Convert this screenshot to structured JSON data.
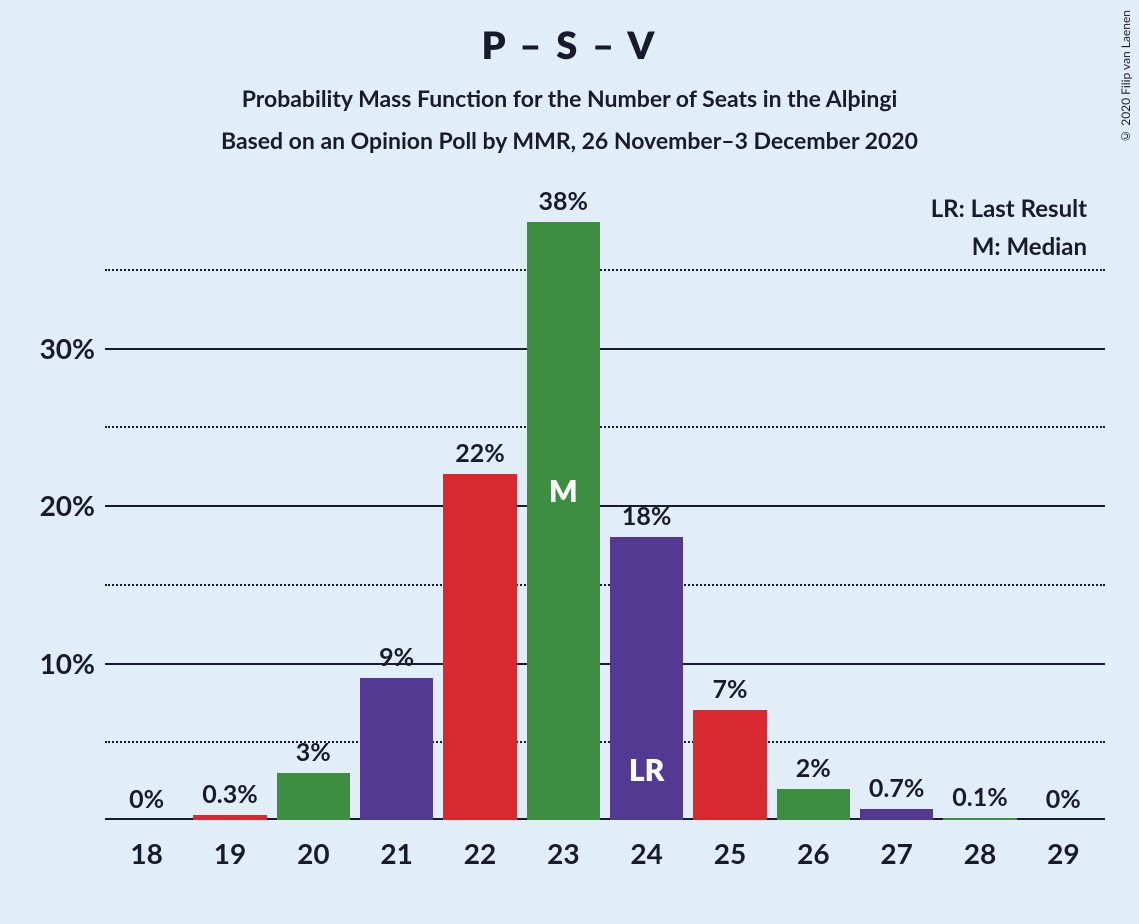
{
  "title": "P – S – V",
  "subtitle1": "Probability Mass Function for the Number of Seats in the Alþingi",
  "subtitle2": "Based on an Opinion Poll by MMR, 26 November–3 December 2020",
  "copyright": "© 2020 Filip van Laenen",
  "legend": {
    "lr": "LR: Last Result",
    "m": "M: Median"
  },
  "chart": {
    "type": "bar",
    "background_color": "#e2eef7",
    "axis_color": "#1a1a2e",
    "grid_color": "#1a1a2e",
    "text_color": "#1a1a2e",
    "bar_label_fontsize": 25,
    "axis_label_fontsize": 28,
    "ymax_percent": 40,
    "y_major_ticks": [
      10,
      20,
      30
    ],
    "y_minor_ticks": [
      5,
      15,
      25,
      35
    ],
    "bar_width_ratio": 0.88,
    "colors": {
      "green": "#3e8e41",
      "purple": "#523a93",
      "red": "#d7292e"
    },
    "bars": [
      {
        "x": "18",
        "value": 0,
        "label": "0%",
        "color": "green"
      },
      {
        "x": "19",
        "value": 0.3,
        "label": "0.3%",
        "color": "red"
      },
      {
        "x": "20",
        "value": 3,
        "label": "3%",
        "color": "green"
      },
      {
        "x": "21",
        "value": 9,
        "label": "9%",
        "color": "purple"
      },
      {
        "x": "22",
        "value": 22,
        "label": "22%",
        "color": "red"
      },
      {
        "x": "23",
        "value": 38,
        "label": "38%",
        "color": "green",
        "in_label": "M",
        "in_label_pos": "upper"
      },
      {
        "x": "24",
        "value": 18,
        "label": "18%",
        "color": "purple",
        "in_label": "LR",
        "in_label_pos": "lower"
      },
      {
        "x": "25",
        "value": 7,
        "label": "7%",
        "color": "red"
      },
      {
        "x": "26",
        "value": 2,
        "label": "2%",
        "color": "green"
      },
      {
        "x": "27",
        "value": 0.7,
        "label": "0.7%",
        "color": "purple"
      },
      {
        "x": "28",
        "value": 0.1,
        "label": "0.1%",
        "color": "green"
      },
      {
        "x": "29",
        "value": 0,
        "label": "0%",
        "color": "green"
      }
    ]
  }
}
